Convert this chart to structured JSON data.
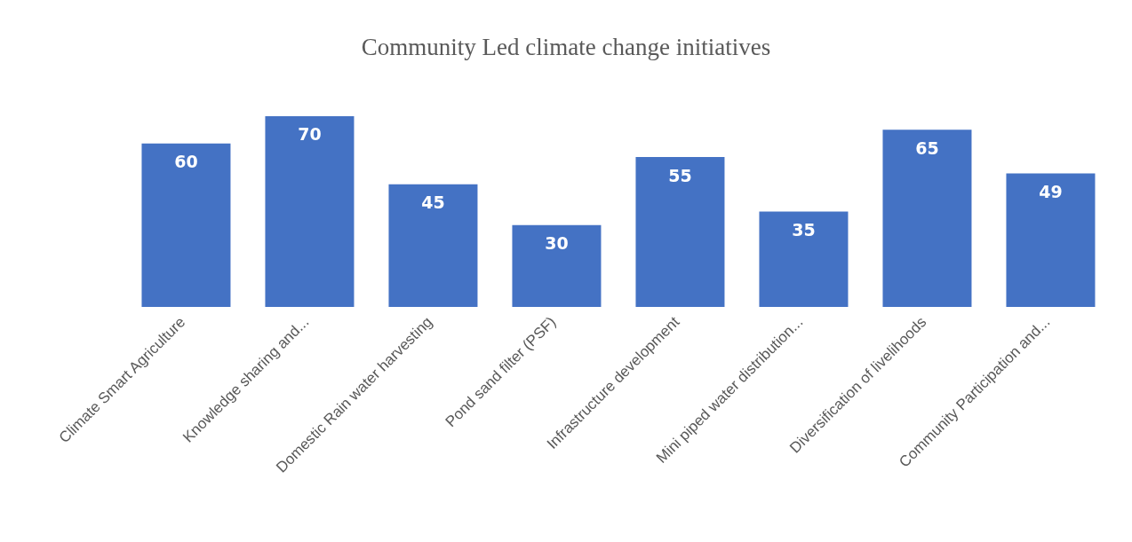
{
  "chart_data": {
    "type": "bar",
    "title": "Community Led climate change initiatives",
    "categories": [
      "Climate Smart Agriculture",
      "Knowledge sharing and...",
      "Domestic Rain water harvesting",
      "Pond sand filter (PSF)",
      "Infrastructure development",
      "Mini piped water distribution...",
      "Diversification of livelihoods",
      "Community Participation and..."
    ],
    "values": [
      60,
      70,
      45,
      30,
      55,
      35,
      65,
      49
    ],
    "color": "#4472c4",
    "data_labels": true,
    "grid": false,
    "legend": false
  }
}
